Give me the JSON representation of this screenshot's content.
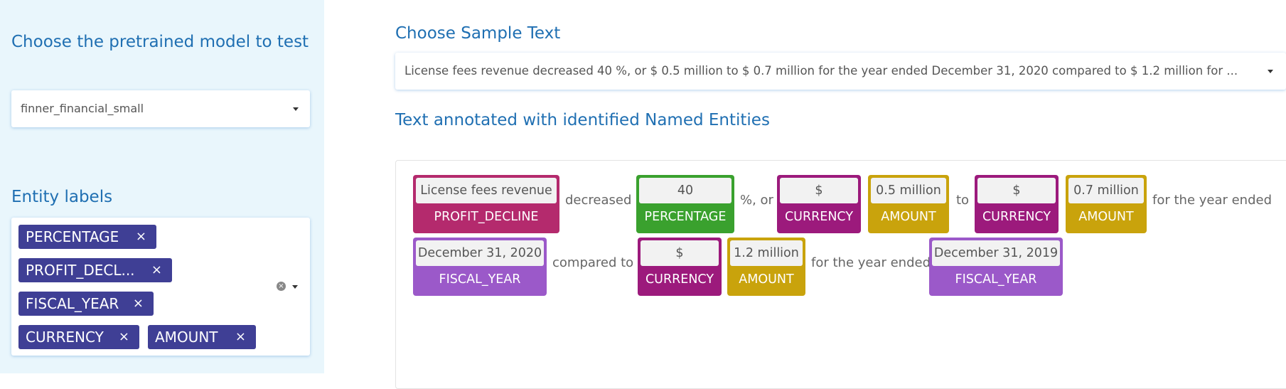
{
  "sidebar": {
    "model_heading": "Choose the pretrained model to test",
    "model_select_value": "finner_financial_small",
    "labels_heading": "Entity labels",
    "labels": [
      "PERCENTAGE",
      "PROFIT_DECL...",
      "FISCAL_YEAR",
      "CURRENCY",
      "AMOUNT"
    ],
    "remove_glyph": "×",
    "clear_glyph": "×"
  },
  "main": {
    "sample_heading": "Choose Sample Text",
    "sample_value": "License fees revenue decreased 40 %, or $ 0.5 million to $ 0.7 million for the year ended December 31, 2020 compared to $ 1.2 million for ...",
    "annot_heading": "Text annotated with identified Named Entities"
  },
  "colors": {
    "PROFIT_DECLINE": "#b42a6d",
    "PERCENTAGE": "#3aa12e",
    "CURRENCY": "#9c1a7c",
    "AMOUNT": "#c9a30c",
    "FISCAL_YEAR": "#9b59c9"
  },
  "annotation": {
    "row1": [
      {
        "type": "entity",
        "text": "License fees revenue",
        "label": "PROFIT_DECLINE"
      },
      {
        "type": "text",
        "text": "decreased"
      },
      {
        "type": "entity",
        "text": "40",
        "label": "PERCENTAGE"
      },
      {
        "type": "text",
        "text": "%, or"
      },
      {
        "type": "entity",
        "text": "$",
        "label": "CURRENCY"
      },
      {
        "type": "entity",
        "text": "0.5 million",
        "label": "AMOUNT"
      },
      {
        "type": "text",
        "text": "to"
      },
      {
        "type": "entity",
        "text": "$",
        "label": "CURRENCY"
      },
      {
        "type": "entity",
        "text": "0.7 million",
        "label": "AMOUNT"
      },
      {
        "type": "text",
        "text": "for the year ended"
      }
    ],
    "row2": [
      {
        "type": "entity",
        "text": "December 31, 2020",
        "label": "FISCAL_YEAR"
      },
      {
        "type": "text",
        "text": "compared to"
      },
      {
        "type": "entity",
        "text": "$",
        "label": "CURRENCY"
      },
      {
        "type": "entity",
        "text": "1.2 million",
        "label": "AMOUNT"
      },
      {
        "type": "text",
        "text": "for the year ended"
      },
      {
        "type": "entity",
        "text": "December 31, 2019",
        "label": "FISCAL_YEAR"
      }
    ]
  }
}
